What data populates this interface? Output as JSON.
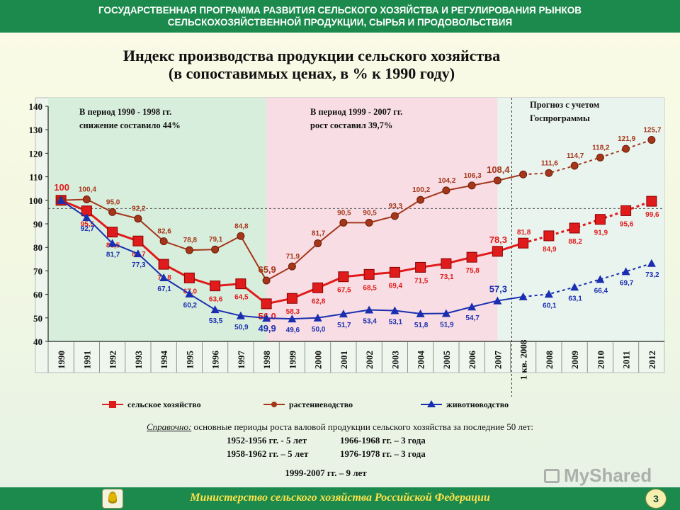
{
  "header": {
    "line1": "ГОСУДАРСТВЕННАЯ ПРОГРАММА РАЗВИТИЯ СЕЛЬСКОГО ХОЗЯЙСТВА И РЕГУЛИРОВАНИЯ РЫНКОВ",
    "line2": "СЕЛЬСКОХОЗЯЙСТВЕННОЙ ПРОДУКЦИИ, СЫРЬЯ И ПРОДОВОЛЬСТВИЯ"
  },
  "chart_data": {
    "type": "line",
    "title": "Индекс производства продукции сельского хозяйства",
    "subtitle": "(в сопоставимых ценах, в % к 1990 году)",
    "xlabel": "",
    "ylabel": "",
    "ylim": [
      40,
      140
    ],
    "yticks": [
      40,
      50,
      60,
      70,
      80,
      90,
      100,
      110,
      120,
      130,
      140
    ],
    "categories": [
      "1990",
      "1991",
      "1992",
      "1993",
      "1994",
      "1995",
      "1996",
      "1997",
      "1998",
      "1999",
      "2000",
      "2001",
      "2002",
      "2003",
      "2004",
      "2005",
      "2006",
      "2007",
      "1 кв. 2008",
      "2008",
      "2009",
      "2010",
      "2011",
      "2012"
    ],
    "forecast_start_index": 18,
    "colors": {
      "agri": "#e01b1b",
      "crop": "#a5361a",
      "livestock": "#1a2fb0"
    },
    "series": [
      {
        "name": "сельское хозяйство",
        "values": [
          100,
          95.5,
          86.5,
          82.7,
          72.8,
          67.0,
          63.6,
          64.5,
          56.0,
          58.3,
          62.8,
          67.5,
          68.5,
          69.4,
          71.5,
          73.1,
          75.8,
          78.3,
          81.8,
          84.9,
          88.2,
          91.9,
          95.6,
          99.6
        ],
        "labels": [
          "100",
          "95,5",
          "86,5",
          "82,7",
          "72,8",
          "67,0",
          "63,6",
          "64,5",
          "56,0",
          "58,3",
          "62,8",
          "67,5",
          "68,5",
          "69,4",
          "71,5",
          "73,1",
          "75,8",
          "78,3",
          "81,8",
          "84,9",
          "88,2",
          "91,9",
          "95,6",
          "99,6"
        ]
      },
      {
        "name": "растениеводство",
        "values": [
          100,
          100.4,
          95.0,
          92.2,
          82.6,
          78.8,
          79.1,
          84.8,
          65.9,
          71.9,
          81.7,
          90.5,
          90.5,
          93.3,
          100.2,
          104.2,
          106.3,
          108.4,
          111,
          111.6,
          114.7,
          118.2,
          121.9,
          125.7
        ],
        "labels": [
          "",
          "100,4",
          "95,0",
          "92,2",
          "82,6",
          "78,8",
          "79,1",
          "84,8",
          "65,9",
          "71,9",
          "81,7",
          "90,5",
          "90,5",
          "93,3",
          "100,2",
          "104,2",
          "106,3",
          "108,4",
          "",
          "111,6",
          "114,7",
          "118,2",
          "121,9",
          "125,7"
        ]
      },
      {
        "name": "животноводство",
        "values": [
          100,
          92.7,
          81.7,
          77.3,
          67.1,
          60.2,
          53.5,
          50.9,
          49.9,
          49.6,
          50.0,
          51.7,
          53.4,
          53.1,
          51.8,
          51.9,
          54.7,
          57.3,
          59,
          60.1,
          63.1,
          66.4,
          69.7,
          73.2
        ],
        "labels": [
          "",
          "92,7",
          "81,7",
          "77,3",
          "67,1",
          "60,2",
          "53,5",
          "50,9",
          "49,9",
          "49,6",
          "50,0",
          "51,7",
          "53,4",
          "53,1",
          "51,8",
          "51,9",
          "54,7",
          "57,3",
          "",
          "60,1",
          "63,1",
          "66,4",
          "69,7",
          "73,2"
        ]
      }
    ],
    "annotations": [
      {
        "line1": "В период 1990 - 1998 гг.",
        "line2": "снижение составило 44%"
      },
      {
        "line1": "В период 1999 - 2007 гг.",
        "line2": "рост составил 39,7%"
      },
      {
        "line1": "Прогноз с учетом",
        "line2": "Госпрограммы"
      }
    ],
    "legend_placement": "bottom"
  },
  "reference": {
    "intro_label": "Справочно:",
    "intro_text": " основные периоды роста валовой продукции сельского хозяйства за последние 50 лет:",
    "row1_left": "1952-1956 гг. -  5 лет",
    "row1_right": "1966-1968 гг. – 3 года",
    "row2_left": "1958-1962 гг. – 5 лет",
    "row2_right": "1976-1978 гг. – 3 года",
    "row3": "1999-2007 гг. – 9 лет"
  },
  "footer": {
    "ministry": "Министерство сельского хозяйства Российской Федерации",
    "page": "3"
  },
  "watermark": "MyShared"
}
